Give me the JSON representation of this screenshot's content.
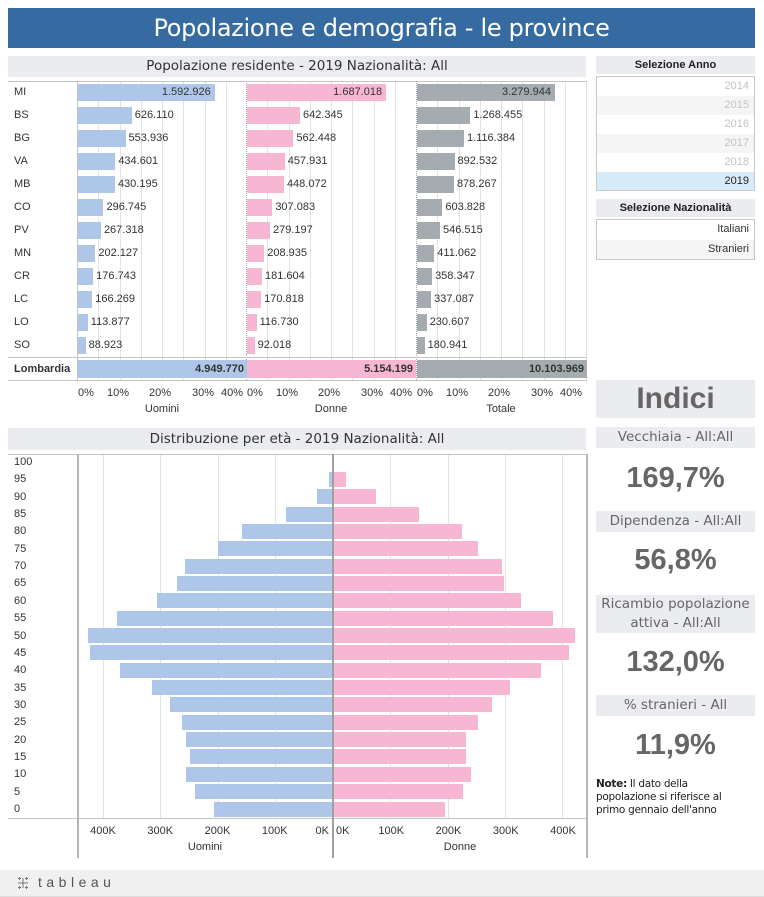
{
  "header": {
    "title": "Popolazione e demografia - le province"
  },
  "colors": {
    "men": "#aec7e8",
    "women": "#f7b6d2",
    "total": "#a5acaf",
    "title_bar": "#366ba1",
    "header_bg": "#ebecef",
    "selected_bg": "#d7ecfb",
    "gridline": "#e3e3e3",
    "axis_line": "#c4c4c4",
    "center_line": "#a0a0a0"
  },
  "chart_data": [
    {
      "type": "bar",
      "orientation": "horizontal",
      "title": "Popolazione residente - 2019 Nazionalità: All",
      "categories": [
        "MI",
        "BS",
        "BG",
        "VA",
        "MB",
        "CO",
        "PV",
        "MN",
        "CR",
        "LC",
        "LO",
        "SO"
      ],
      "series": [
        {
          "name": "Uomini",
          "key": "men",
          "values": [
            1592926,
            626110,
            553936,
            434601,
            430195,
            296745,
            267318,
            202127,
            176743,
            166269,
            113877,
            88923
          ],
          "labels": [
            "1.592.926",
            "626.110",
            "553.936",
            "434.601",
            "430.195",
            "296.745",
            "267.318",
            "202.127",
            "176.743",
            "166.269",
            "113.877",
            "88.923"
          ]
        },
        {
          "name": "Donne",
          "key": "women",
          "values": [
            1687018,
            642345,
            562448,
            457931,
            448072,
            307083,
            279197,
            208935,
            181604,
            170818,
            116730,
            92018
          ],
          "labels": [
            "1.687.018",
            "642.345",
            "562.448",
            "457.931",
            "448.072",
            "307.083",
            "279.197",
            "208.935",
            "181.604",
            "170.818",
            "116.730",
            "92.018"
          ]
        },
        {
          "name": "Totale",
          "key": "total",
          "values": [
            3279944,
            1268455,
            1116384,
            892532,
            878267,
            603828,
            546515,
            411062,
            358347,
            337087,
            230607,
            180941
          ],
          "labels": [
            "3.279.944",
            "1.268.455",
            "1.116.384",
            "892.532",
            "878.267",
            "603.828",
            "546.515",
            "411.062",
            "358.347",
            "337.087",
            "230.607",
            "180.941"
          ]
        }
      ],
      "total": {
        "category": "Lombardia",
        "values": [
          4949770,
          5154199,
          10103969
        ],
        "labels": [
          "4.949.770",
          "5.154.199",
          "10.103.969"
        ]
      },
      "x_ticks": [
        "0%",
        "10%",
        "20%",
        "30%",
        "40%"
      ],
      "xlim_percent": [
        0,
        40
      ],
      "panel_titles": [
        "Uomini",
        "Donne",
        "Totale"
      ],
      "grid": true
    },
    {
      "type": "bar",
      "orientation": "horizontal-pyramid",
      "title": "Distribuzione per età - 2019 Nazionalità: All",
      "categories": [
        "100",
        "95",
        "90",
        "85",
        "80",
        "75",
        "70",
        "65",
        "60",
        "55",
        "50",
        "45",
        "40",
        "35",
        "30",
        "25",
        "20",
        "15",
        "10",
        "5",
        "0"
      ],
      "series": [
        {
          "name": "Uomini",
          "key": "men",
          "values": [
            0,
            5000,
            26000,
            81000,
            158000,
            200000,
            257000,
            271000,
            306000,
            376000,
            427000,
            422000,
            371000,
            315000,
            283000,
            262000,
            255000,
            248000,
            255000,
            239000,
            206000
          ]
        },
        {
          "name": "Donne",
          "key": "women",
          "values": [
            0,
            21000,
            73000,
            149000,
            224000,
            251000,
            293000,
            297000,
            326000,
            383000,
            421000,
            411000,
            361000,
            307000,
            276000,
            251000,
            231000,
            231000,
            239000,
            225000,
            194000
          ]
        }
      ],
      "x_ticks_left": [
        "400K",
        "300K",
        "200K",
        "100K",
        "0K"
      ],
      "x_ticks_right": [
        "0K",
        "100K",
        "200K",
        "300K",
        "400K"
      ],
      "xlim": [
        0,
        445000
      ],
      "xlabels": [
        "Uomini",
        "Donne"
      ],
      "grid": true
    }
  ],
  "filters": {
    "year": {
      "title": "Selezione Anno",
      "options": [
        {
          "label": "2014",
          "state": "dim"
        },
        {
          "label": "2015",
          "state": "dim"
        },
        {
          "label": "2016",
          "state": "dim"
        },
        {
          "label": "2017",
          "state": "dim"
        },
        {
          "label": "2018",
          "state": "dim"
        },
        {
          "label": "2019",
          "state": "sel"
        }
      ]
    },
    "nationality": {
      "title": "Selezione Nazionalità",
      "options": [
        {
          "label": "Italiani",
          "state": "norm"
        },
        {
          "label": "Stranieri",
          "state": "norm"
        }
      ]
    }
  },
  "indices": {
    "title": "Indici",
    "items": [
      {
        "label": "Vecchiaia - All:All",
        "value": "169,7%"
      },
      {
        "label": "Dipendenza - All:All",
        "value": "56,8%"
      },
      {
        "label": "Ricambio popolazione attiva - All:All",
        "value": "132,0%"
      },
      {
        "label": "% stranieri - All",
        "value": "11,9%"
      }
    ]
  },
  "note": {
    "label": "Note:",
    "text": "Il dato della popolazione si riferisce al primo gennaio dell'anno"
  },
  "footer": {
    "logo_text": "tableau",
    "logo_icon": "tableau-cross-icon"
  }
}
